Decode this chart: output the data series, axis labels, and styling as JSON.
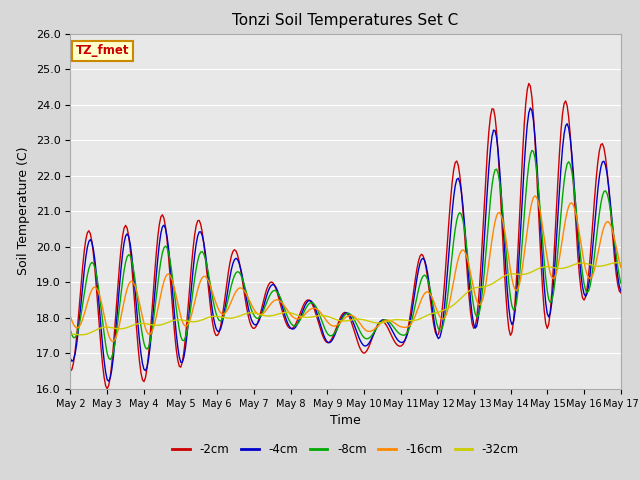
{
  "title": "Tonzi Soil Temperatures Set C",
  "xlabel": "Time",
  "ylabel": "Soil Temperature (C)",
  "ylim": [
    16.0,
    26.0
  ],
  "yticks": [
    16.0,
    17.0,
    18.0,
    19.0,
    20.0,
    21.0,
    22.0,
    23.0,
    24.0,
    25.0,
    26.0
  ],
  "xtick_labels": [
    "May 2",
    "May 3",
    "May 4",
    "May 5",
    "May 6",
    "May 7",
    "May 8",
    "May 9",
    "May 10",
    "May 11",
    "May 12",
    "May 13",
    "May 14",
    "May 15",
    "May 16",
    "May 17"
  ],
  "series_colors": [
    "#cc0000",
    "#0000cc",
    "#00aa00",
    "#ff8800",
    "#cccc00"
  ],
  "series_labels": [
    "-2cm",
    "-4cm",
    "-8cm",
    "-16cm",
    "-32cm"
  ],
  "legend_label": "TZ_fmet",
  "background_color": "#e8e8e8",
  "grid_color": "#ffffff",
  "line_width": 1.0,
  "title_fontsize": 11,
  "axis_fontsize": 9,
  "tick_fontsize": 8
}
